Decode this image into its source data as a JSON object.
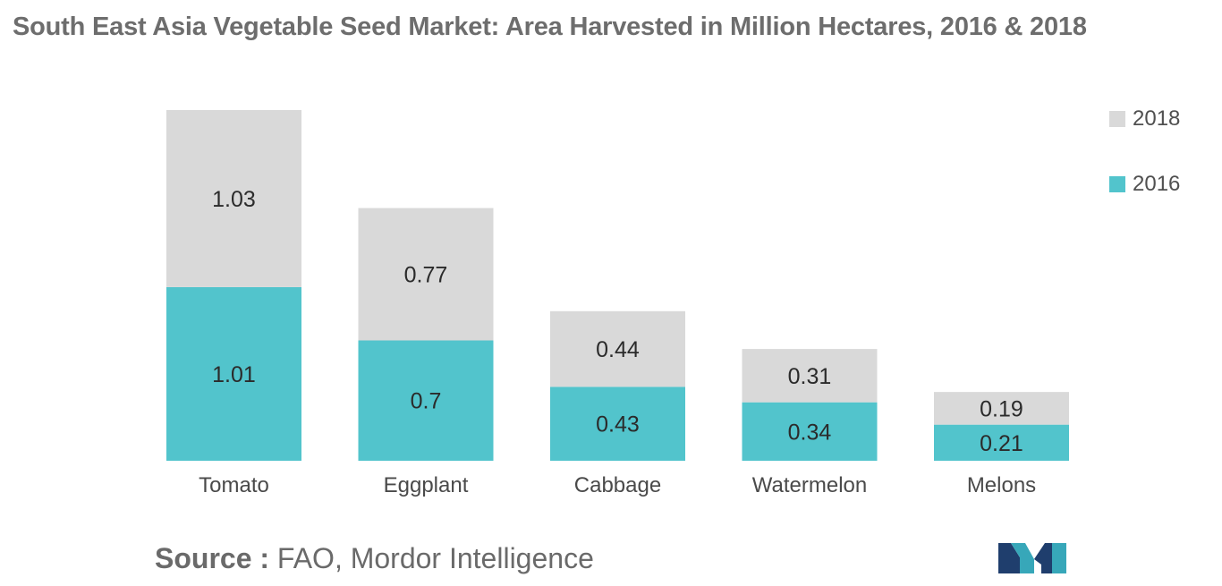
{
  "title": "South East Asia Vegetable Seed Market: Area Harvested in Million Hectares, 2016 & 2018",
  "chart_data": {
    "type": "bar",
    "stacked": true,
    "title": "South East Asia Vegetable Seed Market: Area Harvested in Million Hectares, 2016 & 2018",
    "xlabel": "",
    "ylabel": "",
    "categories": [
      "Tomato",
      "Eggplant",
      "Cabbage",
      "Watermelon",
      "Melons"
    ],
    "series": [
      {
        "name": "2016",
        "values": [
          1.01,
          0.7,
          0.43,
          0.34,
          0.21
        ],
        "color": "#52c4cc"
      },
      {
        "name": "2018",
        "values": [
          1.03,
          0.77,
          0.44,
          0.31,
          0.19
        ],
        "color": "#d9d9d9"
      }
    ],
    "ylim": [
      0,
      2.04
    ],
    "grid": false,
    "legend_position": "top-right",
    "data_labels": true
  },
  "legend": [
    {
      "label": "2018",
      "color": "#d9d9d9"
    },
    {
      "label": "2016",
      "color": "#52c4cc"
    }
  ],
  "source": {
    "prefix": "Source :",
    "text": "FAO, Mordor Intelligence"
  },
  "logo": {
    "icon": "mordor-intelligence-logo-icon"
  }
}
